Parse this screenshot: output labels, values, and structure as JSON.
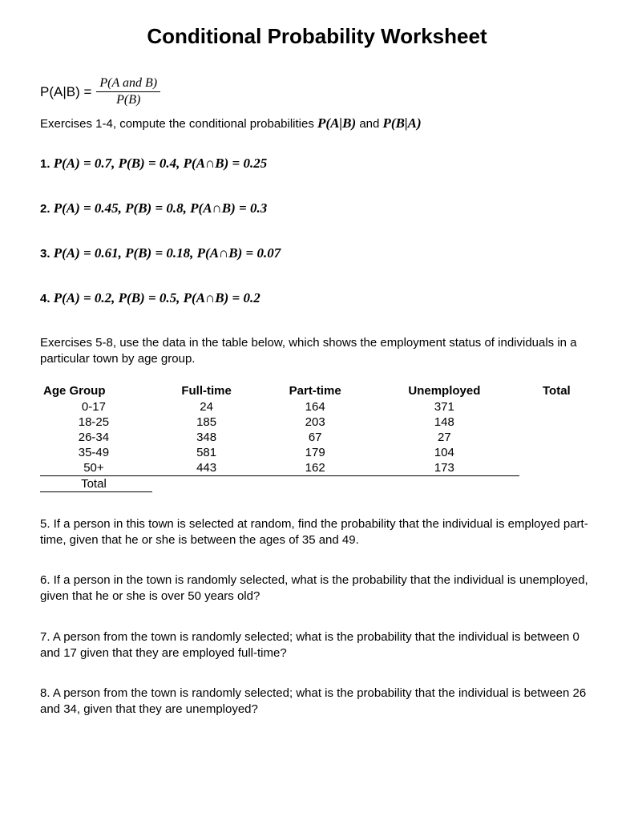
{
  "title": "Conditional Probability Worksheet",
  "formula": {
    "lhs": "P(A|B) = ",
    "numerator": "P(A and B)",
    "denominator": "P(B)"
  },
  "instruction1_pre": "Exercises 1-4, compute the conditional probabilities ",
  "instruction1_m1": "P(A|B)",
  "instruction1_mid": " and ",
  "instruction1_m2": "P(B|A)",
  "exercises": [
    {
      "n": "1.  ",
      "pa": "P(A) = 0.7, ",
      "pb": "P(B) = 0.4, ",
      "pab": "P(A∩B) = 0.25"
    },
    {
      "n": "2.  ",
      "pa": "P(A) = 0.45, ",
      "pb": "P(B) = 0.8, ",
      "pab": "P(A∩B) = 0.3"
    },
    {
      "n": "3.  ",
      "pa": "P(A) = 0.61, ",
      "pb": "P(B) = 0.18, ",
      "pab": "P(A∩B) = 0.07"
    },
    {
      "n": "4.  ",
      "pa": "P(A) = 0.2, ",
      "pb": "P(B) = 0.5, ",
      "pab": "P(A∩B) = 0.2"
    }
  ],
  "instruction2": "Exercises 5-8, use the data in the table below, which shows the employment status of individuals in a particular town by age group.",
  "table": {
    "headers": [
      "Age Group",
      "Full-time",
      "Part-time",
      "Unemployed",
      "Total"
    ],
    "rows": [
      [
        "0-17",
        "24",
        "164",
        "371",
        ""
      ],
      [
        "18-25",
        "185",
        "203",
        "148",
        ""
      ],
      [
        "26-34",
        "348",
        "67",
        "27",
        ""
      ],
      [
        "35-49",
        "581",
        "179",
        "104",
        ""
      ],
      [
        "50+",
        "443",
        "162",
        "173",
        ""
      ]
    ],
    "total_label": "Total"
  },
  "questions": [
    "5.  If a person in this town is selected at random, find the probability that the individual is employed part-time, given that he or she is between the ages of 35 and 49.",
    "6.  If a person in the town is randomly selected, what is the probability that the individual is unemployed, given that he or she is over 50 years old?",
    "7.  A person from the town is randomly selected; what is the probability that the individual is between 0 and 17 given that they are employed full-time?",
    "8.  A person from the town is randomly selected; what is the probability that the individual is between 26 and 34, given that they are unemployed?"
  ]
}
